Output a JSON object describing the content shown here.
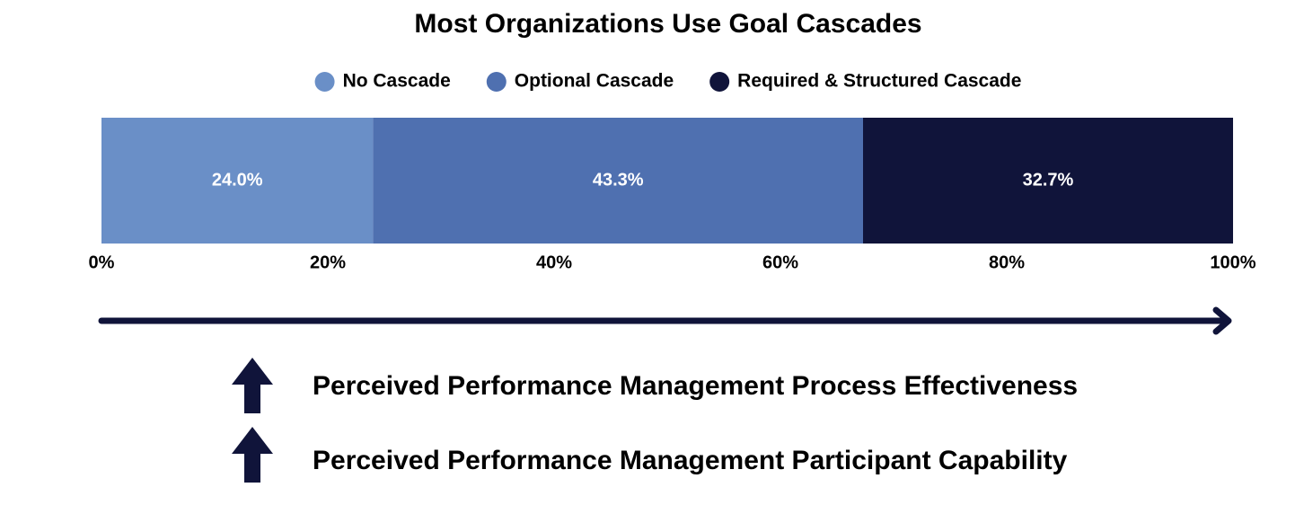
{
  "chart_data": {
    "type": "stacked-bar-horizontal",
    "title": "Most Organizations Use Goal Cascades",
    "categories": [
      null
    ],
    "series": [
      {
        "name": "No Cascade",
        "color": "#6a8fc7",
        "values": [
          24.0
        ],
        "value_labels": [
          "24.0%"
        ]
      },
      {
        "name": "Optional Cascade",
        "color": "#4f70b0",
        "values": [
          43.3
        ],
        "value_labels": [
          "43.3%"
        ]
      },
      {
        "name": "Required & Structured Cascade",
        "color": "#10143a",
        "values": [
          32.7
        ],
        "value_labels": [
          "32.7%"
        ]
      }
    ],
    "xlim": [
      0,
      100
    ],
    "xticks": [
      {
        "value": 0,
        "label": "0%"
      },
      {
        "value": 20,
        "label": "20%"
      },
      {
        "value": 40,
        "label": "40%"
      },
      {
        "value": 60,
        "label": "60%"
      },
      {
        "value": 80,
        "label": "80%"
      },
      {
        "value": 100,
        "label": "100%"
      }
    ],
    "legend": "top",
    "annotations": [
      "Perceived Performance Management Process Effectiveness",
      "Perceived Performance Management Participant Capability"
    ]
  }
}
